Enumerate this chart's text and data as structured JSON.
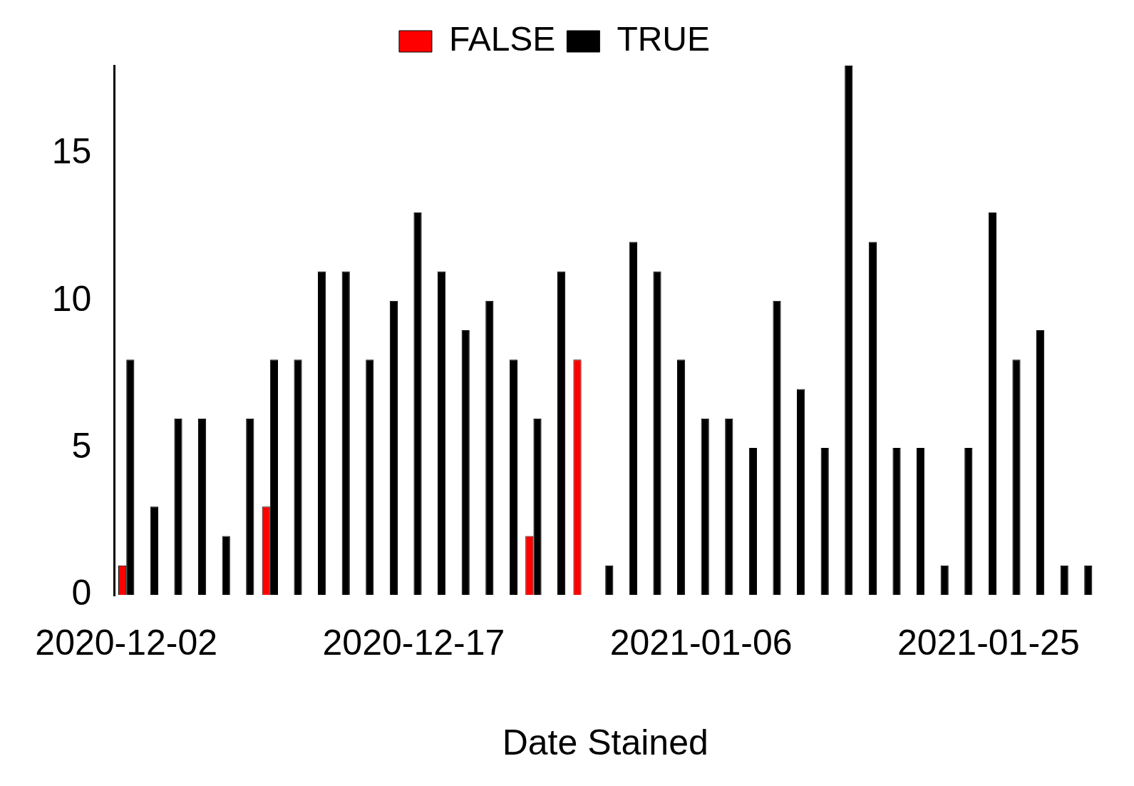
{
  "chart_data": {
    "type": "bar",
    "xlabel": "Date Stained",
    "categories": [
      "2020-12-02",
      null,
      null,
      null,
      null,
      null,
      null,
      null,
      null,
      null,
      null,
      null,
      "2020-12-17",
      null,
      null,
      null,
      null,
      null,
      null,
      null,
      null,
      null,
      null,
      null,
      "2021-01-06",
      null,
      null,
      null,
      null,
      null,
      null,
      null,
      null,
      null,
      null,
      null,
      "2021-01-25",
      null,
      null,
      null,
      null
    ],
    "series": [
      {
        "name": "FALSE",
        "color": "#ff0000",
        "values": [
          1,
          0,
          0,
          0,
          0,
          0,
          3,
          0,
          0,
          0,
          0,
          0,
          0,
          0,
          0,
          0,
          0,
          2,
          0,
          8,
          0,
          0,
          0,
          0,
          0,
          0,
          0,
          0,
          0,
          0,
          0,
          0,
          0,
          0,
          0,
          0,
          0,
          0,
          0,
          0,
          0
        ]
      },
      {
        "name": "TRUE",
        "color": "#000000",
        "values": [
          8,
          3,
          6,
          6,
          2,
          6,
          8,
          8,
          11,
          11,
          8,
          10,
          13,
          11,
          9,
          10,
          8,
          6,
          11,
          0,
          1,
          12,
          11,
          8,
          6,
          6,
          5,
          10,
          7,
          5,
          18,
          12,
          5,
          5,
          1,
          5,
          13,
          8,
          9,
          1,
          1
        ]
      }
    ],
    "ylim": [
      0,
      18
    ],
    "yticks": [
      0,
      5,
      10,
      15
    ],
    "grid": false,
    "legend": "top"
  }
}
